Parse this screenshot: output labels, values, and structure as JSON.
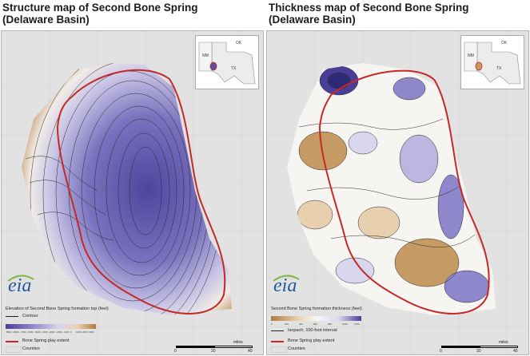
{
  "panels": [
    {
      "title": "Structure map of Second Bone Spring\n(Delaware Basin)",
      "logo": "eia",
      "legend": {
        "title": "Elevation of Second Bone Spring formation top (feet)",
        "contour_label": "Contour",
        "ramp_ticks": [
          "-8600",
          "-8000",
          "-7000",
          "-6000",
          "-5000",
          "-4000",
          "-3000",
          "-2000",
          "-1000",
          "0",
          "1000",
          "2000",
          "3000"
        ],
        "ramp_colors": [
          "#4a3e96",
          "#8e87cc",
          "#d9d7ee",
          "#e8cfae",
          "#b07a3c"
        ],
        "play_extent_label": "Bone Spring play extent",
        "counties_label": "Counties"
      },
      "inset": {
        "labels": [
          "OK",
          "NM",
          "TX"
        ]
      },
      "scalebar": {
        "unit_label": "miles",
        "ticks": [
          "0",
          "20",
          "40"
        ]
      }
    },
    {
      "title": "Thickness map of Second Bone Spring\n(Delaware Basin)",
      "logo": "eia",
      "legend": {
        "title": "Second Bone Spring formation thickness (feet)",
        "contour_label": "Isopach, 100-foot interval",
        "ramp_ticks": [
          "0",
          "200",
          "400",
          "600",
          "800",
          "1000",
          "1200"
        ],
        "ramp_colors": [
          "#b07a3c",
          "#e8cfae",
          "#f7f7f7",
          "#d9d7ee",
          "#4a3e96"
        ],
        "play_extent_label": "Bone Spring play extent",
        "counties_label": "Counties"
      },
      "inset": {
        "labels": [
          "OK",
          "NM",
          "TX"
        ]
      },
      "scalebar": {
        "unit_label": "miles",
        "ticks": [
          "0",
          "20",
          "40"
        ]
      }
    }
  ],
  "colors": {
    "play_extent": "#c62828",
    "contour": "#222222",
    "county_fill": "#e2e2e2",
    "structure_deep": "#5a50a8",
    "structure_shallow": "#b07a3c",
    "thickness_high": "#4a3e96",
    "thickness_low": "#b07a3c"
  }
}
